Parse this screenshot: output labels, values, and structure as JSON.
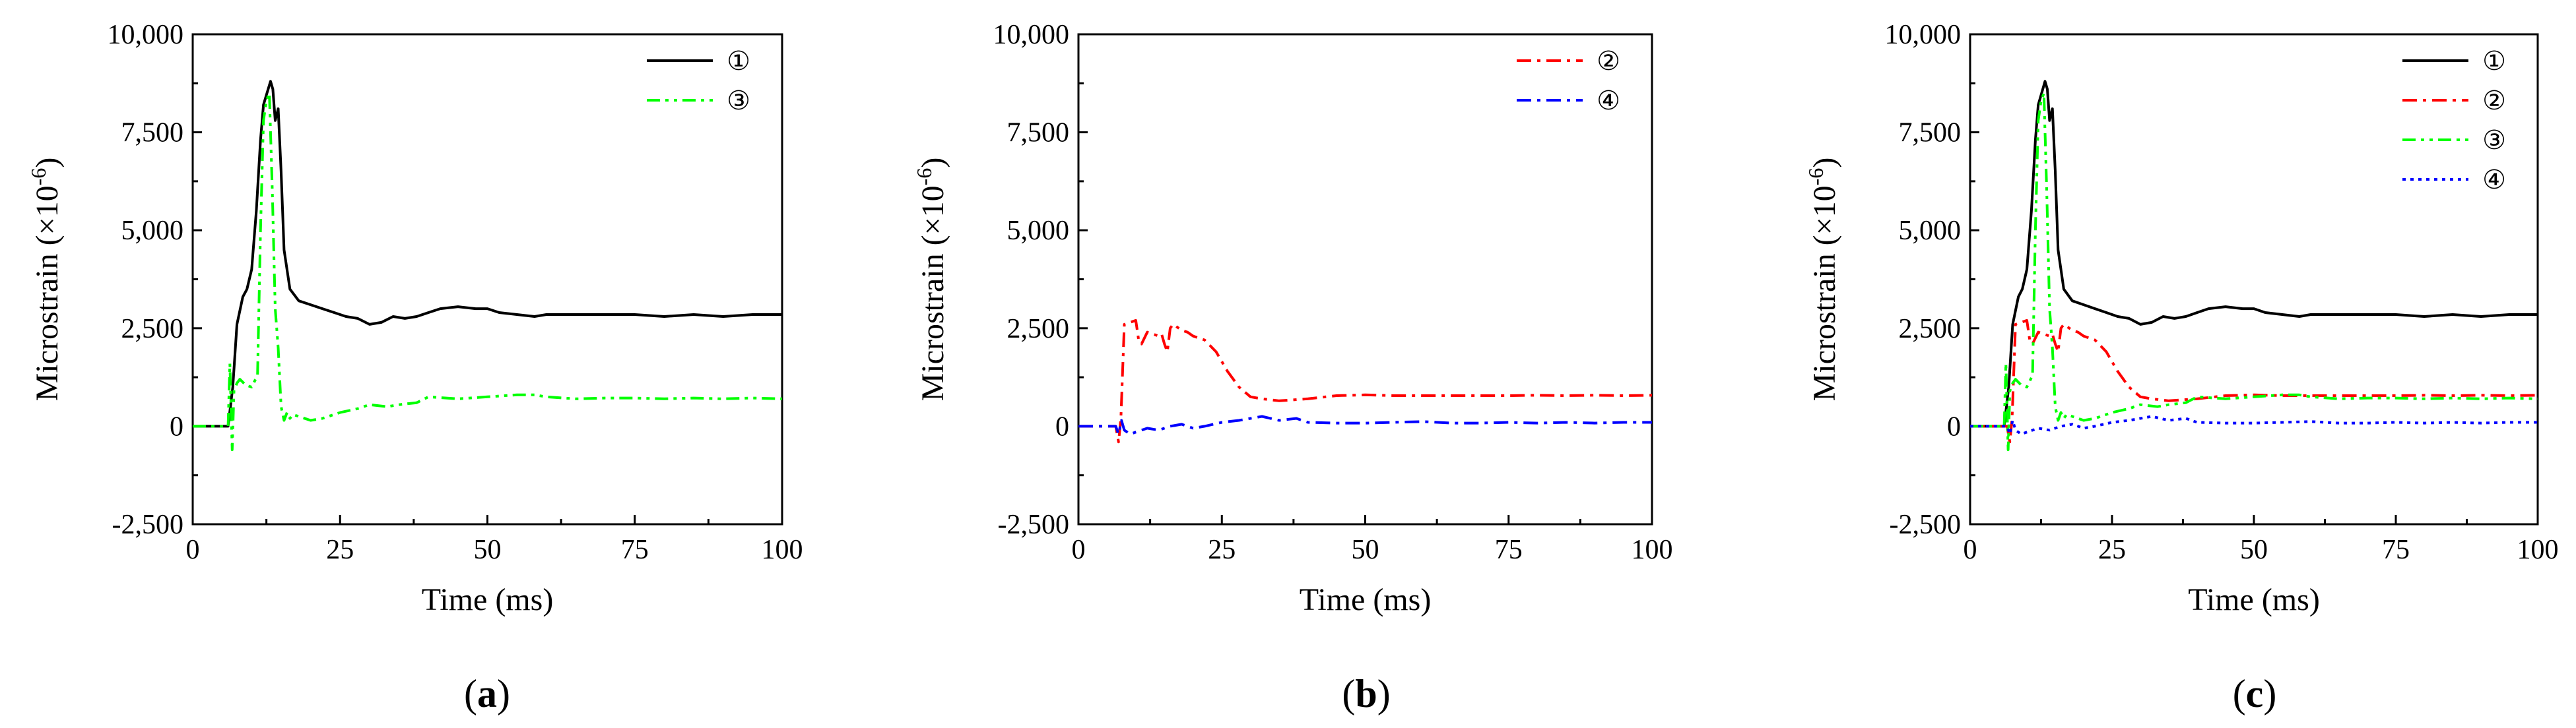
{
  "colors": {
    "s1": "#000000",
    "s2": "#ff0000",
    "s3": "#00ff00",
    "s4": "#0000ff"
  },
  "series_defs": {
    "1": {
      "name": "①",
      "color": "#000000",
      "dash": "solid"
    },
    "2": {
      "name": "②",
      "color": "#ff0000",
      "dash": "dashdot"
    },
    "3": {
      "name": "③",
      "color": "#00ff00",
      "dash": "dashdotdot"
    },
    "4": {
      "name": "④",
      "color": "#0000ff",
      "dash": "dashdot"
    }
  },
  "chart_data": [
    {
      "type": "line",
      "panel": "a",
      "panel_label_open": "(",
      "panel_label_letter": "a",
      "panel_label_close": ")",
      "xlabel": "Time (ms)",
      "ylabel_main": "Microstrain (×10",
      "ylabel_sup": "-6",
      "ylabel_close": ")",
      "xlim": [
        0,
        100
      ],
      "ylim": [
        -2500,
        10000
      ],
      "xticks": [
        0,
        25,
        50,
        75,
        100
      ],
      "xtick_labels": [
        "0",
        "25",
        "50",
        "75",
        "100"
      ],
      "yticks": [
        -2500,
        0,
        2500,
        5000,
        7500,
        10000
      ],
      "ytick_labels": [
        "-2,500",
        "0",
        "2,500",
        "5,000",
        "7,500",
        "10,000"
      ],
      "legend": "top-right",
      "series": [
        {
          "id": "1",
          "name": "①",
          "x": [
            0,
            5,
            6,
            6.8,
            7.5,
            8.5,
            9.2,
            10,
            10.8,
            11.5,
            12,
            12.6,
            13.2,
            13.6,
            14,
            14.5,
            15,
            15.5,
            16.5,
            18,
            20,
            22,
            24,
            26,
            28,
            30,
            32,
            34,
            36,
            38,
            40,
            42,
            45,
            48,
            50,
            52,
            55,
            58,
            60,
            65,
            70,
            75,
            80,
            85,
            90,
            95,
            100
          ],
          "y": [
            0,
            0,
            0,
            1000,
            2600,
            3300,
            3500,
            4000,
            5500,
            7300,
            8200,
            8500,
            8800,
            8600,
            7800,
            8100,
            6500,
            4500,
            3500,
            3200,
            3100,
            3000,
            2900,
            2800,
            2750,
            2600,
            2650,
            2800,
            2750,
            2800,
            2900,
            3000,
            3050,
            3000,
            3000,
            2900,
            2850,
            2800,
            2850,
            2850,
            2850,
            2850,
            2800,
            2850,
            2800,
            2850,
            2850
          ]
        },
        {
          "id": "3",
          "name": "③",
          "x": [
            0,
            5,
            6,
            6.3,
            6.7,
            7,
            7.5,
            8,
            9,
            10,
            11,
            11.5,
            12,
            12.5,
            13,
            13.5,
            14,
            14.5,
            15,
            15.5,
            16,
            16.5,
            17,
            18,
            20,
            22,
            25,
            28,
            30,
            33,
            35,
            38,
            40,
            45,
            50,
            55,
            58,
            60,
            65,
            70,
            75,
            80,
            85,
            90,
            95,
            100
          ],
          "y": [
            0,
            0,
            0,
            1600,
            -600,
            900,
            1100,
            1200,
            1050,
            1000,
            1300,
            5000,
            7800,
            8300,
            8500,
            6000,
            3000,
            2000,
            500,
            150,
            350,
            200,
            300,
            250,
            150,
            200,
            350,
            450,
            550,
            500,
            550,
            600,
            750,
            700,
            750,
            800,
            800,
            750,
            700,
            720,
            720,
            700,
            720,
            700,
            720,
            700
          ]
        }
      ]
    },
    {
      "type": "line",
      "panel": "b",
      "panel_label_open": "(",
      "panel_label_letter": "b",
      "panel_label_close": ")",
      "xlabel": "Time (ms)",
      "ylabel_main": "Microstrain (×10",
      "ylabel_sup": "-6",
      "ylabel_close": ")",
      "xlim": [
        0,
        100
      ],
      "ylim": [
        -2500,
        10000
      ],
      "xticks": [
        0,
        25,
        50,
        75,
        100
      ],
      "xtick_labels": [
        "0",
        "25",
        "50",
        "75",
        "100"
      ],
      "yticks": [
        -2500,
        0,
        2500,
        5000,
        7500,
        10000
      ],
      "ytick_labels": [
        "-2,500",
        "0",
        "2,500",
        "5,000",
        "7,500",
        "10,000"
      ],
      "legend": "top-right",
      "series": [
        {
          "id": "2",
          "name": "②",
          "x": [
            0,
            6.5,
            7,
            7.4,
            8,
            9,
            10,
            10.5,
            11,
            12,
            13,
            14,
            14.5,
            15,
            15.5,
            16,
            16.5,
            17,
            18,
            19,
            20,
            22,
            24,
            26,
            28,
            30,
            32,
            35,
            40,
            45,
            50,
            55,
            60,
            65,
            70,
            75,
            80,
            85,
            90,
            95,
            100
          ],
          "y": [
            0,
            0,
            -400,
            200,
            2600,
            2650,
            2700,
            2200,
            2100,
            2400,
            2350,
            2300,
            2350,
            2100,
            1900,
            2500,
            2600,
            2550,
            2450,
            2400,
            2300,
            2200,
            1900,
            1400,
            1000,
            750,
            700,
            650,
            700,
            780,
            800,
            780,
            780,
            780,
            780,
            780,
            790,
            780,
            790,
            780,
            790
          ]
        },
        {
          "id": "4",
          "name": "④",
          "x": [
            0,
            6.5,
            7,
            7.5,
            8,
            9,
            10,
            12,
            14,
            16,
            18,
            20,
            22,
            25,
            28,
            30,
            32,
            35,
            38,
            40,
            45,
            50,
            55,
            60,
            65,
            70,
            75,
            80,
            85,
            90,
            95,
            100
          ],
          "y": [
            0,
            0,
            -200,
            150,
            -100,
            -200,
            -150,
            -50,
            -100,
            0,
            50,
            -50,
            0,
            100,
            150,
            200,
            250,
            150,
            200,
            100,
            80,
            80,
            100,
            120,
            80,
            80,
            100,
            80,
            100,
            80,
            100,
            100
          ]
        }
      ]
    },
    {
      "type": "line",
      "panel": "c",
      "panel_label_open": "(",
      "panel_label_letter": "c",
      "panel_label_close": ")",
      "xlabel": "Time (ms)",
      "ylabel_main": "Microstrain (×10",
      "ylabel_sup": "-6",
      "ylabel_close": ")",
      "xlim": [
        0,
        100
      ],
      "ylim": [
        -2500,
        10000
      ],
      "xticks": [
        0,
        25,
        50,
        75,
        100
      ],
      "xtick_labels": [
        "0",
        "25",
        "50",
        "75",
        "100"
      ],
      "yticks": [
        -2500,
        0,
        2500,
        5000,
        7500,
        10000
      ],
      "ytick_labels": [
        "-2,500",
        "0",
        "2,500",
        "5,000",
        "7,500",
        "10,000"
      ],
      "legend": "top-right",
      "series": [
        {
          "id": "1",
          "name": "①",
          "x": [
            0,
            5,
            6,
            6.8,
            7.5,
            8.5,
            9.2,
            10,
            10.8,
            11.5,
            12,
            12.6,
            13.2,
            13.6,
            14,
            14.5,
            15,
            15.5,
            16.5,
            18,
            20,
            22,
            24,
            26,
            28,
            30,
            32,
            34,
            36,
            38,
            40,
            42,
            45,
            48,
            50,
            52,
            55,
            58,
            60,
            65,
            70,
            75,
            80,
            85,
            90,
            95,
            100
          ],
          "y": [
            0,
            0,
            0,
            1000,
            2600,
            3300,
            3500,
            4000,
            5500,
            7300,
            8200,
            8500,
            8800,
            8600,
            7800,
            8100,
            6500,
            4500,
            3500,
            3200,
            3100,
            3000,
            2900,
            2800,
            2750,
            2600,
            2650,
            2800,
            2750,
            2800,
            2900,
            3000,
            3050,
            3000,
            3000,
            2900,
            2850,
            2800,
            2850,
            2850,
            2850,
            2850,
            2800,
            2850,
            2800,
            2850,
            2850
          ]
        },
        {
          "id": "2",
          "name": "②",
          "x": [
            0,
            6.5,
            7,
            7.4,
            8,
            9,
            10,
            10.5,
            11,
            12,
            13,
            14,
            14.5,
            15,
            15.5,
            16,
            16.5,
            17,
            18,
            19,
            20,
            22,
            24,
            26,
            28,
            30,
            32,
            35,
            40,
            45,
            50,
            55,
            60,
            65,
            70,
            75,
            80,
            85,
            90,
            95,
            100
          ],
          "y": [
            0,
            0,
            -400,
            200,
            2600,
            2650,
            2700,
            2200,
            2100,
            2400,
            2350,
            2300,
            2350,
            2100,
            1900,
            2500,
            2600,
            2550,
            2450,
            2400,
            2300,
            2200,
            1900,
            1400,
            1000,
            750,
            700,
            650,
            700,
            780,
            800,
            780,
            780,
            780,
            780,
            780,
            790,
            780,
            790,
            780,
            790
          ]
        },
        {
          "id": "3",
          "name": "③",
          "x": [
            0,
            5,
            6,
            6.3,
            6.7,
            7,
            7.5,
            8,
            9,
            10,
            11,
            11.5,
            12,
            12.5,
            13,
            13.5,
            14,
            14.5,
            15,
            15.5,
            16,
            16.5,
            17,
            18,
            20,
            22,
            25,
            28,
            30,
            33,
            35,
            38,
            40,
            45,
            50,
            55,
            58,
            60,
            65,
            70,
            75,
            80,
            85,
            90,
            95,
            100
          ],
          "y": [
            0,
            0,
            0,
            1600,
            -600,
            900,
            1100,
            1200,
            1050,
            1000,
            1300,
            5000,
            7800,
            8300,
            8500,
            6000,
            3000,
            2000,
            500,
            150,
            350,
            200,
            300,
            250,
            150,
            200,
            350,
            450,
            550,
            500,
            550,
            600,
            750,
            700,
            750,
            800,
            800,
            750,
            700,
            720,
            720,
            700,
            720,
            700,
            720,
            700
          ]
        },
        {
          "id": "4",
          "name": "④",
          "x": [
            0,
            6.5,
            7,
            7.5,
            8,
            9,
            10,
            12,
            14,
            16,
            18,
            20,
            22,
            25,
            28,
            30,
            32,
            35,
            38,
            40,
            45,
            50,
            55,
            60,
            65,
            70,
            75,
            80,
            85,
            90,
            95,
            100
          ],
          "y": [
            0,
            0,
            -200,
            150,
            -100,
            -200,
            -150,
            -50,
            -100,
            0,
            50,
            -50,
            0,
            100,
            150,
            200,
            250,
            150,
            200,
            100,
            80,
            80,
            100,
            120,
            80,
            80,
            100,
            80,
            100,
            80,
            100,
            100
          ]
        }
      ]
    }
  ]
}
